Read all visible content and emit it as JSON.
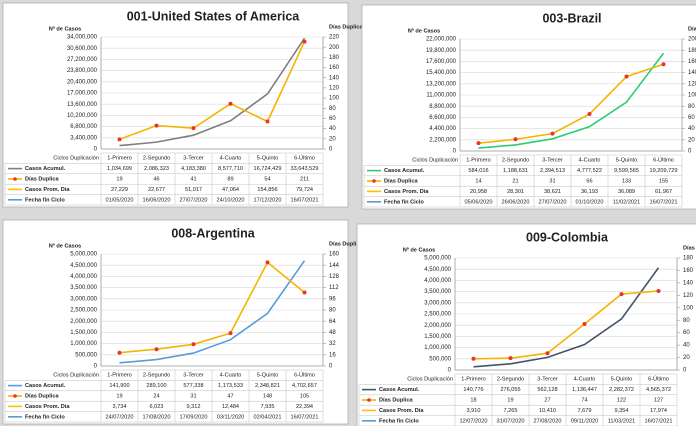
{
  "chart_data": [
    {
      "type": "line",
      "title": "001-United States of America",
      "ylabel": "Nº de Casos",
      "y2label": "Días Duplicación",
      "xlabel": "Ciclos Duplicación",
      "categories": [
        "1-Primero",
        "2-Segundo",
        "3-Tercer",
        "4-Cuarto",
        "5-Quinto",
        "6-Último"
      ],
      "ylim": [
        0,
        34000000
      ],
      "yticks": [
        0,
        {
          "value": 3400000,
          "label": "3,400,000"
        },
        {
          "value": 6800000,
          "label": "6,800,000"
        },
        {
          "value": 10200000,
          "label": "10,200,000"
        },
        {
          "value": 13600000,
          "label": "13,600,000"
        },
        {
          "value": 17000000,
          "label": "17,000,000"
        },
        {
          "value": 20400000,
          "label": "20,400,000"
        },
        {
          "value": 23800000,
          "label": "23,800,000"
        },
        {
          "value": 27200000,
          "label": "27,200,000"
        },
        {
          "value": 30600000,
          "label": "30,600,000"
        },
        {
          "value": 34000000,
          "label": "34,000,000"
        }
      ],
      "y2lim": [
        0,
        220
      ],
      "y2ticks": [
        0,
        20,
        40,
        60,
        80,
        100,
        120,
        140,
        160,
        180,
        200,
        220
      ],
      "grid": true,
      "series": [
        {
          "name": "Casos Acumul.",
          "color": "#7f7f7f",
          "values": [
            1034699,
            2086323,
            4183380,
            8577710,
            16724429,
            33643529
          ],
          "value_labels": [
            "1,034,699",
            "2,086,323",
            "4,183,380",
            "8,577,710",
            "16,724,429",
            "33,643,529"
          ]
        },
        {
          "name": "Días Duplica",
          "color": "#f5b400",
          "marker_color": "#e8352a",
          "axis": "y2",
          "values": [
            19,
            46,
            41,
            89,
            54,
            211
          ]
        }
      ],
      "table_rows": [
        {
          "name": "Casos Prom. Día",
          "color": "#ffc000",
          "values": [
            27229,
            22677,
            51017,
            47064,
            154856,
            79724
          ],
          "value_labels": [
            "27,229",
            "22,677",
            "51,017",
            "47,064",
            "154,856",
            "79,724"
          ]
        },
        {
          "name": "Fecha fin Ciclo",
          "color": "#5b9bd5",
          "values": [
            "01/05/2020",
            "16/06/2020",
            "27/07/2020",
            "24/10/2020",
            "17/12/2020",
            "16/07/2021"
          ]
        }
      ]
    },
    {
      "type": "line",
      "title": "003-Brazil",
      "ylabel": "Nº de Casos",
      "y2label": "Días Duplicación",
      "xlabel": "Ciclos Duplicación",
      "categories": [
        "1-Primero",
        "2-Segundo",
        "3-Tercer",
        "4-Cuarto",
        "5-Quinto",
        "6-Último"
      ],
      "ylim": [
        0,
        22000000
      ],
      "yticks": [
        0,
        {
          "value": 2200000,
          "label": "2,200,000"
        },
        {
          "value": 4400000,
          "label": "4,400,000"
        },
        {
          "value": 6600000,
          "label": "6,600,000"
        },
        {
          "value": 8800000,
          "label": "8,800,000"
        },
        {
          "value": 11000000,
          "label": "11,000,000"
        },
        {
          "value": 13200000,
          "label": "13,200,000"
        },
        {
          "value": 15400000,
          "label": "15,400,000"
        },
        {
          "value": 17600000,
          "label": "17,600,000"
        },
        {
          "value": 19800000,
          "label": "19,800,000"
        },
        {
          "value": 22000000,
          "label": "22,000,000"
        }
      ],
      "y2lim": [
        0,
        200
      ],
      "y2ticks": [
        0,
        20,
        40,
        60,
        80,
        100,
        120,
        140,
        160,
        180,
        200
      ],
      "grid": true,
      "series": [
        {
          "name": "Casos Acumul.",
          "color": "#2ecc71",
          "values": [
            584016,
            1188631,
            2394513,
            4777522,
            9599565,
            19209729
          ],
          "value_labels": [
            "584,016",
            "1,188,631",
            "2,394,513",
            "4,777,522",
            "9,599,565",
            "19,209,729"
          ]
        },
        {
          "name": "Días Duplica",
          "color": "#f5b400",
          "marker_color": "#e8352a",
          "axis": "y2",
          "values": [
            14,
            21,
            31,
            66,
            133,
            155
          ]
        }
      ],
      "table_rows": [
        {
          "name": "Casos Prom. Día",
          "color": "#ffc000",
          "values": [
            20958,
            28301,
            38621,
            36193,
            36089,
            61967
          ],
          "value_labels": [
            "20,958",
            "28,301",
            "38,621",
            "36,193",
            "36,089",
            "61,967"
          ]
        },
        {
          "name": "Fecha fin Ciclo",
          "color": "#5b9bd5",
          "values": [
            "05/06/2020",
            "26/06/2020",
            "27/07/2020",
            "01/10/2020",
            "11/02/2021",
            "16/07/2021"
          ]
        }
      ]
    },
    {
      "type": "line",
      "title": "008-Argentina",
      "ylabel": "Nº de Casos",
      "y2label": "Días Duplicación",
      "xlabel": "Ciclos Duplicación",
      "categories": [
        "1-Primero",
        "2-Segundo",
        "3-Tercer",
        "4-Cuarto",
        "5-Quinto",
        "6-Último"
      ],
      "ylim": [
        0,
        5000000
      ],
      "yticks": [
        0,
        {
          "value": 500000,
          "label": "500,000"
        },
        {
          "value": 1000000,
          "label": "1,000,000"
        },
        {
          "value": 1500000,
          "label": "1,500,000"
        },
        {
          "value": 2000000,
          "label": "2,000,000"
        },
        {
          "value": 2500000,
          "label": "2,500,000"
        },
        {
          "value": 3000000,
          "label": "3,000,000"
        },
        {
          "value": 3500000,
          "label": "3,500,000"
        },
        {
          "value": 4000000,
          "label": "4,000,000"
        },
        {
          "value": 4500000,
          "label": "4,500,000"
        },
        {
          "value": 5000000,
          "label": "5,000,000"
        }
      ],
      "y2lim": [
        0,
        160
      ],
      "y2ticks": [
        0,
        16,
        32,
        48,
        64,
        80,
        96,
        112,
        128,
        144,
        160
      ],
      "grid": true,
      "series": [
        {
          "name": "Casos Acumul.",
          "color": "#5b9bd5",
          "values": [
            141900,
            289100,
            577338,
            1173533,
            2348821,
            4702657
          ],
          "value_labels": [
            "141,900",
            "289,100",
            "577,338",
            "1,173,533",
            "2,348,821",
            "4,702,657"
          ]
        },
        {
          "name": "Días Duplica",
          "color": "#f5b400",
          "marker_color": "#e8352a",
          "axis": "y2",
          "values": [
            19,
            24,
            31,
            47,
            148,
            105
          ]
        }
      ],
      "table_rows": [
        {
          "name": "Casos Prom. Día",
          "color": "#ffc000",
          "values": [
            3734,
            6023,
            9312,
            12484,
            7935,
            22394
          ],
          "value_labels": [
            "3,734",
            "6,023",
            "9,312",
            "12,484",
            "7,935",
            "22,394"
          ]
        },
        {
          "name": "Fecha fin Ciclo",
          "color": "#5b9bd5",
          "values": [
            "24/07/2020",
            "17/08/2020",
            "17/09/2020",
            "03/11/2020",
            "02/04/2021",
            "16/07/2021"
          ]
        }
      ]
    },
    {
      "type": "line",
      "title": "009-Colombia",
      "ylabel": "Nº de Casos",
      "y2label": "Días Duplicación",
      "xlabel": "Ciclos Duplicación",
      "categories": [
        "1-Primero",
        "2-Segundo",
        "3-Tercer",
        "4-Cuarto",
        "5-Quinto",
        "6-Último"
      ],
      "ylim": [
        0,
        5000000
      ],
      "yticks": [
        0,
        {
          "value": 500000,
          "label": "500,000"
        },
        {
          "value": 1000000,
          "label": "1,000,000"
        },
        {
          "value": 1500000,
          "label": "1,500,000"
        },
        {
          "value": 2000000,
          "label": "2,000,000"
        },
        {
          "value": 2500000,
          "label": "2,500,000"
        },
        {
          "value": 3000000,
          "label": "3,000,000"
        },
        {
          "value": 3500000,
          "label": "3,500,000"
        },
        {
          "value": 4000000,
          "label": "4,000,000"
        },
        {
          "value": 4500000,
          "label": "4,500,000"
        },
        {
          "value": 5000000,
          "label": "5,000,000"
        }
      ],
      "y2lim": [
        0,
        180
      ],
      "y2ticks": [
        0,
        20,
        40,
        60,
        80,
        100,
        120,
        140,
        160,
        180
      ],
      "grid": true,
      "series": [
        {
          "name": "Casos Acumul.",
          "color": "#44546a",
          "values": [
            140776,
            276055,
            562128,
            1136447,
            2282372,
            4565372
          ],
          "value_labels": [
            "140,776",
            "276,055",
            "562,128",
            "1,136,447",
            "2,282,372",
            "4,565,372"
          ]
        },
        {
          "name": "Días Duplica",
          "color": "#f5b400",
          "marker_color": "#e8352a",
          "axis": "y2",
          "values": [
            18,
            19,
            27,
            74,
            122,
            127
          ]
        }
      ],
      "table_rows": [
        {
          "name": "Casos Prom. Día",
          "color": "#ffc000",
          "values": [
            3910,
            7265,
            10410,
            7679,
            9354,
            17974
          ],
          "value_labels": [
            "3,910",
            "7,265",
            "10,410",
            "7,679",
            "9,354",
            "17,974"
          ]
        },
        {
          "name": "Fecha fin Ciclo",
          "color": "#5b9bd5",
          "values": [
            "12/07/2020",
            "31/07/2020",
            "27/08/2020",
            "09/11/2020",
            "11/03/2021",
            "16/07/2021"
          ]
        }
      ]
    }
  ]
}
